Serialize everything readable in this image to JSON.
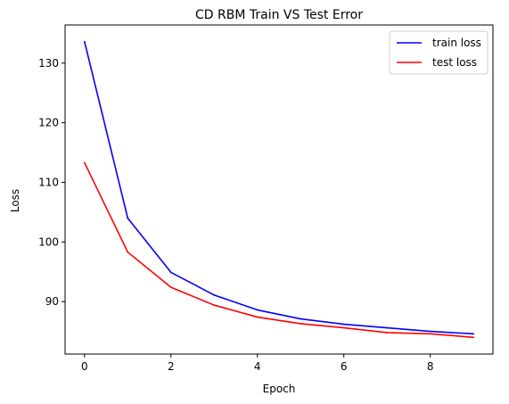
{
  "chart_data": {
    "type": "line",
    "title": "CD RBM Train VS Test Error",
    "xlabel": "Epoch",
    "ylabel": "Loss",
    "xlim": [
      -0.45,
      9.45
    ],
    "ylim": [
      81.2,
      136.4
    ],
    "xticks": [
      0,
      2,
      4,
      6,
      8
    ],
    "yticks": [
      90,
      100,
      110,
      120,
      130
    ],
    "grid": false,
    "legend_position": "top-right",
    "x": [
      0,
      1,
      2,
      3,
      4,
      5,
      6,
      7,
      8,
      9
    ],
    "series": [
      {
        "name": "train loss",
        "color": "#0000ff",
        "values": [
          133.6,
          104.0,
          94.9,
          91.1,
          88.6,
          87.1,
          86.2,
          85.6,
          85.0,
          84.6
        ]
      },
      {
        "name": "test loss",
        "color": "#ff0000",
        "values": [
          113.3,
          98.3,
          92.4,
          89.4,
          87.4,
          86.3,
          85.6,
          84.8,
          84.6,
          84.0
        ]
      }
    ]
  }
}
